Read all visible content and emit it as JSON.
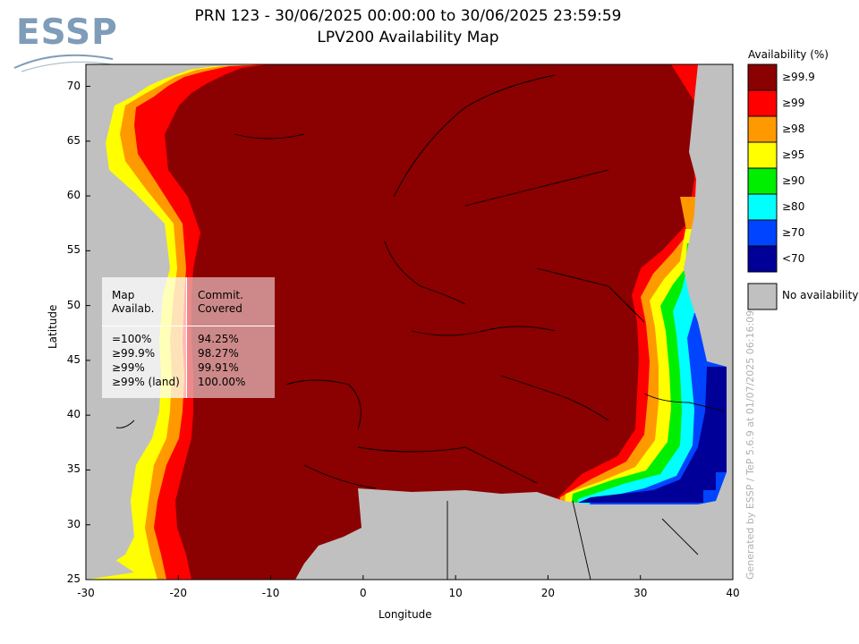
{
  "header": {
    "title_line1": "PRN 123 - 30/06/2025 00:00:00 to 30/06/2025 23:59:59",
    "title_line2": "LPV200 Availability Map"
  },
  "logo": {
    "text": "ESSP"
  },
  "map": {
    "xlabel": "Longitude",
    "ylabel": "Latitude",
    "lon_range": [
      -30,
      40
    ],
    "lat_range": [
      25,
      72
    ],
    "x_ticks": [
      "-30",
      "-20",
      "-10",
      "0",
      "10",
      "20",
      "30",
      "40"
    ],
    "y_ticks": [
      "70",
      "65",
      "60",
      "55",
      "50",
      "45",
      "40",
      "35",
      "30",
      "25"
    ],
    "colors": {
      "no_data": "#c0c0c0",
      "c999": "#8b0000",
      "c99": "#ff0000",
      "c98": "#ff9900",
      "c95": "#ffff00",
      "c90": "#00ee00",
      "c80": "#00ffff",
      "c70": "#0044ff",
      "c_lt70": "#000099"
    }
  },
  "legend": {
    "title": "Availability (%)",
    "items": [
      {
        "label": "≥99.9",
        "color": "#8b0000"
      },
      {
        "label": "≥99",
        "color": "#ff0000"
      },
      {
        "label": "≥98",
        "color": "#ff9900"
      },
      {
        "label": "≥95",
        "color": "#ffff00"
      },
      {
        "label": "≥90",
        "color": "#00ee00"
      },
      {
        "label": "≥80",
        "color": "#00ffff"
      },
      {
        "label": "≥70",
        "color": "#0044ff"
      },
      {
        "label": "<70",
        "color": "#000099"
      }
    ],
    "no_availability": {
      "label": "No availability",
      "color": "#c0c0c0"
    }
  },
  "stats": {
    "header_left": "Map\nAvailab.",
    "header_right": "Commit.\nCovered",
    "rows": [
      {
        "level": "=100%",
        "value": "94.25%"
      },
      {
        "level": "≥99.9%",
        "value": "98.27%"
      },
      {
        "level": "≥99%",
        "value": "99.91%"
      },
      {
        "level": "≥99% (land)",
        "value": "100.00%"
      }
    ]
  },
  "footer_note": "Generated by ESSP / TeP 5.6.9 at 01/07/2025 06:16:09"
}
